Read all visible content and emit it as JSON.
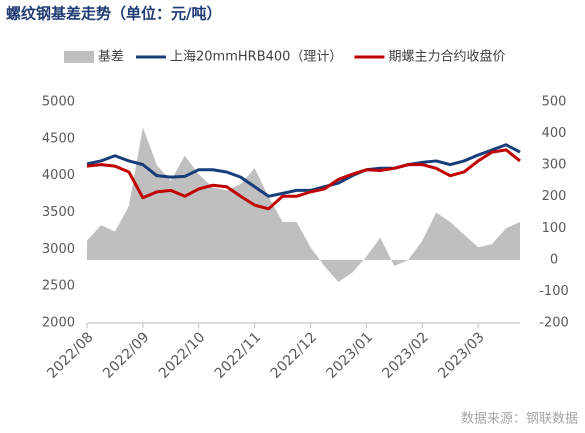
{
  "chart_data": {
    "type": "line",
    "title": "螺纹钢基差走势（单位：元/吨）",
    "source": "数据来源：钢联数据",
    "categories": [
      "2022/08",
      null,
      null,
      null,
      "2022/09",
      null,
      null,
      null,
      "2022/10",
      null,
      null,
      null,
      "2022/11",
      null,
      null,
      null,
      "2022/12",
      null,
      null,
      null,
      "2023/01",
      null,
      null,
      null,
      "2023/02",
      null,
      null,
      null,
      "2023/03",
      null,
      null,
      null
    ],
    "series": [
      {
        "name": "基差",
        "color": "#bfbfbf",
        "kind": "area",
        "axis": "y2",
        "values": [
          60,
          110,
          90,
          170,
          420,
          300,
          250,
          330,
          270,
          230,
          220,
          240,
          290,
          200,
          120,
          120,
          40,
          -20,
          -70,
          -40,
          10,
          70,
          -20,
          0,
          60,
          150,
          120,
          80,
          40,
          50,
          100,
          120
        ]
      },
      {
        "name": "上海20mmHRB400（理计）",
        "color": "#173d7a",
        "kind": "line",
        "values": [
          4160,
          4200,
          4270,
          4200,
          4150,
          4000,
          3980,
          3990,
          4080,
          4080,
          4050,
          3980,
          3850,
          3720,
          3760,
          3800,
          3800,
          3850,
          3900,
          4000,
          4080,
          4100,
          4100,
          4150,
          4180,
          4200,
          4150,
          4200,
          4280,
          4350,
          4420,
          4320
        ]
      },
      {
        "name": "期螺主力合约收盘价",
        "color": "#c00000",
        "kind": "line",
        "values": [
          4130,
          4150,
          4130,
          4050,
          3700,
          3780,
          3800,
          3720,
          3820,
          3870,
          3850,
          3720,
          3600,
          3550,
          3720,
          3720,
          3780,
          3820,
          3950,
          4020,
          4080,
          4070,
          4100,
          4150,
          4150,
          4100,
          4000,
          4050,
          4200,
          4320,
          4350,
          4200
        ]
      }
    ],
    "ylim": [
      2000,
      5000
    ],
    "yticks": [
      2000,
      2500,
      3000,
      3500,
      4000,
      4500,
      5000
    ],
    "y2lim": [
      -200,
      500
    ],
    "y2ticks": [
      -200,
      -100,
      0,
      100,
      200,
      300,
      400,
      500
    ],
    "grid": false,
    "legend": "top"
  }
}
